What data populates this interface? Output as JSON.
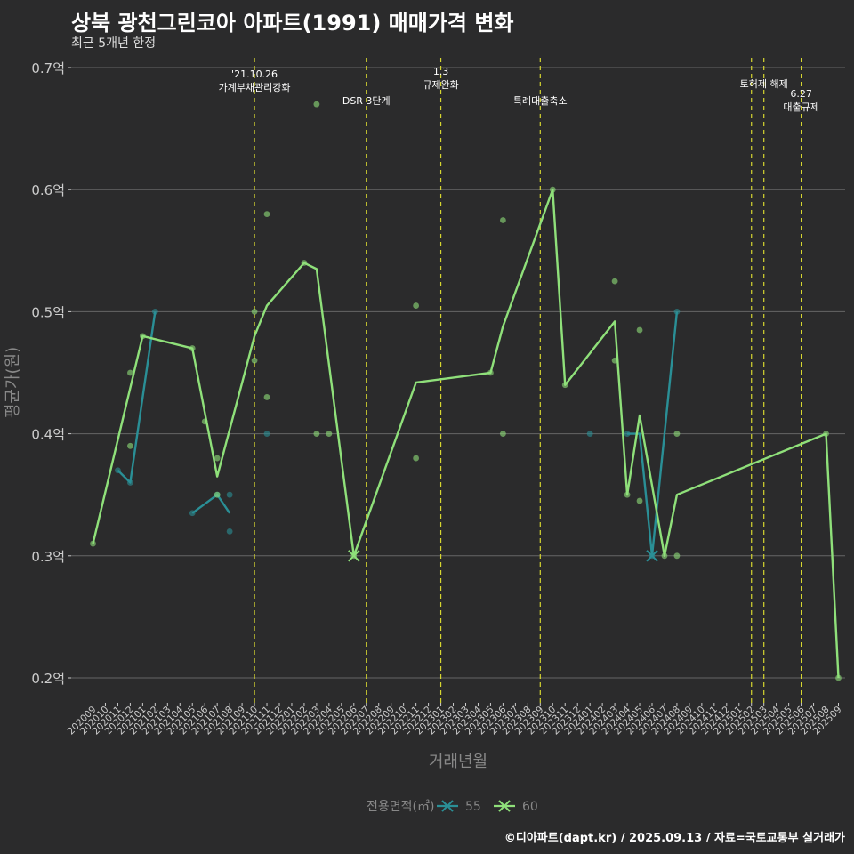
{
  "chart_data": {
    "type": "line",
    "title": "상북 광천그린코아 아파트(1991) 매매가격 변화",
    "subtitle": "최근 5개년 한정",
    "xlabel": "거래년월",
    "ylabel": "평균가(원)",
    "caption": "©디아파트(dapt.kr) / 2025.09.13 / 자료=국토교통부 실거래가",
    "legend_title": "전용면적(㎡)",
    "legend_position": "bottom",
    "ylim": [
      0.18,
      0.71
    ],
    "yticks": [
      {
        "value": 0.2,
        "label": "0.2억"
      },
      {
        "value": 0.3,
        "label": "0.3억"
      },
      {
        "value": 0.4,
        "label": "0.4억"
      },
      {
        "value": 0.5,
        "label": "0.5억"
      },
      {
        "value": 0.6,
        "label": "0.6억"
      },
      {
        "value": 0.7,
        "label": "0.7억"
      }
    ],
    "x_categories": [
      "202009",
      "202010",
      "202011",
      "202012",
      "202101",
      "202102",
      "202103",
      "202104",
      "202105",
      "202106",
      "202107",
      "202108",
      "202109",
      "202110",
      "202111",
      "202112",
      "202201",
      "202202",
      "202203",
      "202204",
      "202205",
      "202206",
      "202207",
      "202208",
      "202209",
      "202210",
      "202211",
      "202212",
      "202301",
      "202302",
      "202303",
      "202304",
      "202305",
      "202306",
      "202307",
      "202308",
      "202309",
      "202310",
      "202311",
      "202312",
      "202401",
      "202402",
      "202403",
      "202404",
      "202405",
      "202406",
      "202407",
      "202408",
      "202409",
      "202410",
      "202411",
      "202412",
      "202501",
      "202502",
      "202503",
      "202504",
      "202505",
      "202506",
      "202507",
      "202508",
      "202509"
    ],
    "series": [
      {
        "name": "55",
        "color": "#2a8f96",
        "line": [
          [
            "202011",
            0.37
          ],
          [
            "202012",
            0.36
          ],
          [
            "202102",
            0.5
          ],
          null,
          [
            "202105",
            0.335
          ],
          [
            "202107",
            0.35
          ],
          [
            "202108",
            0.335
          ],
          null,
          [
            "202404",
            0.4
          ],
          [
            "202405",
            0.4
          ],
          [
            "202406",
            0.3
          ],
          [
            "202408",
            0.5
          ]
        ],
        "points": [
          [
            "202011",
            0.37
          ],
          [
            "202012",
            0.36
          ],
          [
            "202102",
            0.5
          ],
          [
            "202105",
            0.335
          ],
          [
            "202107",
            0.35
          ],
          [
            "202108",
            0.35
          ],
          [
            "202108",
            0.32
          ],
          [
            "202111",
            0.4
          ],
          [
            "202401",
            0.4
          ],
          [
            "202404",
            0.4
          ],
          [
            "202406",
            0.3
          ],
          [
            "202408",
            0.5
          ]
        ],
        "cross": [
          [
            "202406",
            0.3
          ]
        ]
      },
      {
        "name": "60",
        "color": "#8fe07a",
        "line": [
          [
            "202009",
            0.31
          ],
          [
            "202101",
            0.48
          ],
          [
            "202105",
            0.47
          ],
          [
            "202107",
            0.365
          ],
          [
            "202110",
            0.48
          ],
          [
            "202111",
            0.505
          ],
          [
            "202202",
            0.54
          ],
          [
            "202203",
            0.535
          ],
          [
            "202206",
            0.3
          ],
          [
            "202211",
            0.442
          ],
          [
            "202305",
            0.45
          ],
          [
            "202306",
            0.488
          ],
          [
            "202310",
            0.6
          ],
          [
            "202311",
            0.44
          ],
          [
            "202403",
            0.492
          ],
          [
            "202404",
            0.35
          ],
          [
            "202405",
            0.415
          ],
          [
            "202407",
            0.3
          ],
          [
            "202408",
            0.35
          ],
          [
            "202508",
            0.4
          ],
          [
            "202509",
            0.2
          ]
        ],
        "points": [
          [
            "202009",
            0.31
          ],
          [
            "202012",
            0.45
          ],
          [
            "202012",
            0.39
          ],
          [
            "202101",
            0.48
          ],
          [
            "202105",
            0.47
          ],
          [
            "202106",
            0.41
          ],
          [
            "202107",
            0.38
          ],
          [
            "202107",
            0.35
          ],
          [
            "202110",
            0.5
          ],
          [
            "202110",
            0.46
          ],
          [
            "202111",
            0.58
          ],
          [
            "202111",
            0.43
          ],
          [
            "202202",
            0.54
          ],
          [
            "202203",
            0.67
          ],
          [
            "202203",
            0.4
          ],
          [
            "202204",
            0.4
          ],
          [
            "202206",
            0.3
          ],
          [
            "202211",
            0.505
          ],
          [
            "202211",
            0.38
          ],
          [
            "202305",
            0.45
          ],
          [
            "202306",
            0.575
          ],
          [
            "202306",
            0.4
          ],
          [
            "202310",
            0.6
          ],
          [
            "202311",
            0.44
          ],
          [
            "202403",
            0.525
          ],
          [
            "202403",
            0.46
          ],
          [
            "202404",
            0.35
          ],
          [
            "202405",
            0.485
          ],
          [
            "202405",
            0.345
          ],
          [
            "202407",
            0.3
          ],
          [
            "202408",
            0.4
          ],
          [
            "202408",
            0.3
          ],
          [
            "202508",
            0.4
          ],
          [
            "202509",
            0.2
          ]
        ],
        "cross": [
          [
            "202206",
            0.3
          ]
        ]
      }
    ],
    "events": [
      {
        "x": "202110",
        "label": "'21.10.26\n가계부채관리강화",
        "label_y": 0.692
      },
      {
        "x": "202207",
        "label": "DSR 3단계",
        "label_y": 0.67
      },
      {
        "x": "202301",
        "label": "1.3\n규제완화",
        "label_y": 0.694
      },
      {
        "x": "202309",
        "label": "특례대출축소",
        "label_y": 0.67
      },
      {
        "x": "202502",
        "label": "",
        "label_y": 0.684
      },
      {
        "x": "202503",
        "label": "토허제 해제",
        "label_y": 0.684
      },
      {
        "x": "202506",
        "label": "6.27\n대출규제",
        "label_y": 0.676
      }
    ],
    "colors": {
      "background": "#2b2b2c",
      "grid": "#666666",
      "event_line": "#d6d630",
      "text": "#ffffff",
      "axis_text": "#cccccc",
      "axis_title": "#888888"
    }
  }
}
